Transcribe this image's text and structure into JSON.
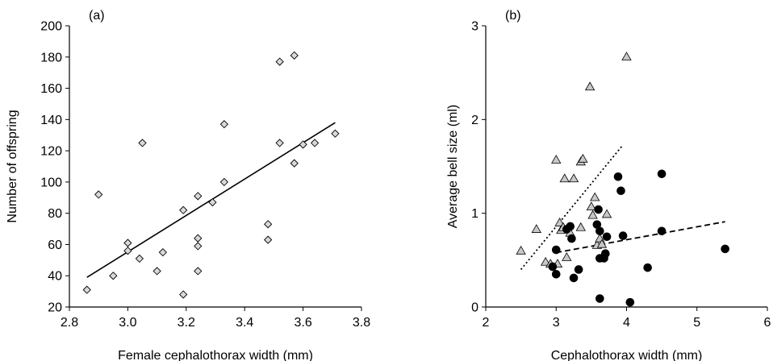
{
  "chart_data": [
    {
      "type": "scatter",
      "panel_label": "(a)",
      "xlabel": "Female cephalothorax width (mm)",
      "ylabel": "Number of offspring",
      "xlim": [
        2.8,
        3.8
      ],
      "ylim": [
        20,
        200
      ],
      "xticks": [
        "2.8",
        "3.0",
        "3.2",
        "3.4",
        "3.6",
        "3.8"
      ],
      "yticks": [
        "20",
        "40",
        "60",
        "80",
        "100",
        "120",
        "140",
        "160",
        "180",
        "200"
      ],
      "grid": false,
      "marker": "diamond",
      "marker_fill": "#d9d9d9",
      "series": [
        {
          "points": [
            [
              2.86,
              31
            ],
            [
              2.9,
              92
            ],
            [
              2.95,
              40
            ],
            [
              3.0,
              61
            ],
            [
              3.0,
              56
            ],
            [
              3.04,
              51
            ],
            [
              3.05,
              125
            ],
            [
              3.1,
              43
            ],
            [
              3.12,
              55
            ],
            [
              3.19,
              28
            ],
            [
              3.19,
              82
            ],
            [
              3.24,
              91
            ],
            [
              3.24,
              64
            ],
            [
              3.24,
              59
            ],
            [
              3.24,
              43
            ],
            [
              3.29,
              87
            ],
            [
              3.33,
              137
            ],
            [
              3.33,
              100
            ],
            [
              3.48,
              73
            ],
            [
              3.48,
              63
            ],
            [
              3.52,
              177
            ],
            [
              3.52,
              125
            ],
            [
              3.57,
              181
            ],
            [
              3.57,
              112
            ],
            [
              3.6,
              124
            ],
            [
              3.64,
              125
            ],
            [
              3.71,
              131
            ]
          ]
        }
      ],
      "trendlines": [
        {
          "style": "solid",
          "x": [
            2.86,
            3.71
          ],
          "y": [
            39,
            138
          ]
        }
      ]
    },
    {
      "type": "scatter",
      "panel_label": "(b)",
      "xlabel": "Cephalothorax width (mm)",
      "ylabel": "Average bell size (ml)",
      "xlim": [
        2,
        6
      ],
      "ylim": [
        0,
        3
      ],
      "xticks": [
        "2",
        "3",
        "4",
        "5",
        "6"
      ],
      "yticks": [
        "0",
        "1",
        "2",
        "3"
      ],
      "grid": false,
      "series": [
        {
          "marker": "triangle",
          "color": "#c8c8c8",
          "points": [
            [
              2.5,
              0.6
            ],
            [
              2.72,
              0.83
            ],
            [
              2.85,
              0.48
            ],
            [
              2.92,
              0.46
            ],
            [
              3.0,
              1.57
            ],
            [
              3.02,
              0.46
            ],
            [
              3.05,
              0.9
            ],
            [
              3.07,
              0.82
            ],
            [
              3.1,
              0.85
            ],
            [
              3.12,
              1.37
            ],
            [
              3.15,
              0.53
            ],
            [
              3.2,
              0.79
            ],
            [
              3.25,
              1.37
            ],
            [
              3.35,
              1.55
            ],
            [
              3.38,
              1.58
            ],
            [
              3.35,
              0.85
            ],
            [
              3.48,
              2.35
            ],
            [
              3.5,
              1.07
            ],
            [
              3.52,
              0.98
            ],
            [
              3.55,
              1.17
            ],
            [
              3.58,
              0.66
            ],
            [
              3.62,
              0.73
            ],
            [
              3.65,
              0.67
            ],
            [
              3.72,
              0.99
            ],
            [
              4.0,
              2.67
            ]
          ]
        },
        {
          "marker": "circle",
          "color": "#000000",
          "points": [
            [
              2.95,
              0.43
            ],
            [
              3.0,
              0.61
            ],
            [
              3.0,
              0.35
            ],
            [
              3.15,
              0.83
            ],
            [
              3.2,
              0.86
            ],
            [
              3.22,
              0.73
            ],
            [
              3.25,
              0.31
            ],
            [
              3.32,
              0.4
            ],
            [
              3.58,
              0.88
            ],
            [
              3.6,
              1.04
            ],
            [
              3.62,
              0.81
            ],
            [
              3.62,
              0.52
            ],
            [
              3.62,
              0.09
            ],
            [
              3.68,
              0.52
            ],
            [
              3.7,
              0.57
            ],
            [
              3.72,
              0.75
            ],
            [
              3.88,
              1.39
            ],
            [
              3.92,
              1.24
            ],
            [
              3.95,
              0.76
            ],
            [
              4.05,
              0.05
            ],
            [
              4.3,
              0.42
            ],
            [
              4.5,
              1.42
            ],
            [
              4.5,
              0.81
            ],
            [
              5.4,
              0.62
            ]
          ]
        }
      ],
      "trendlines": [
        {
          "style": "dotted",
          "x": [
            2.5,
            3.95
          ],
          "y": [
            0.4,
            1.73
          ]
        },
        {
          "style": "dashed",
          "x": [
            3.0,
            5.4
          ],
          "y": [
            0.58,
            0.91
          ]
        }
      ]
    }
  ]
}
